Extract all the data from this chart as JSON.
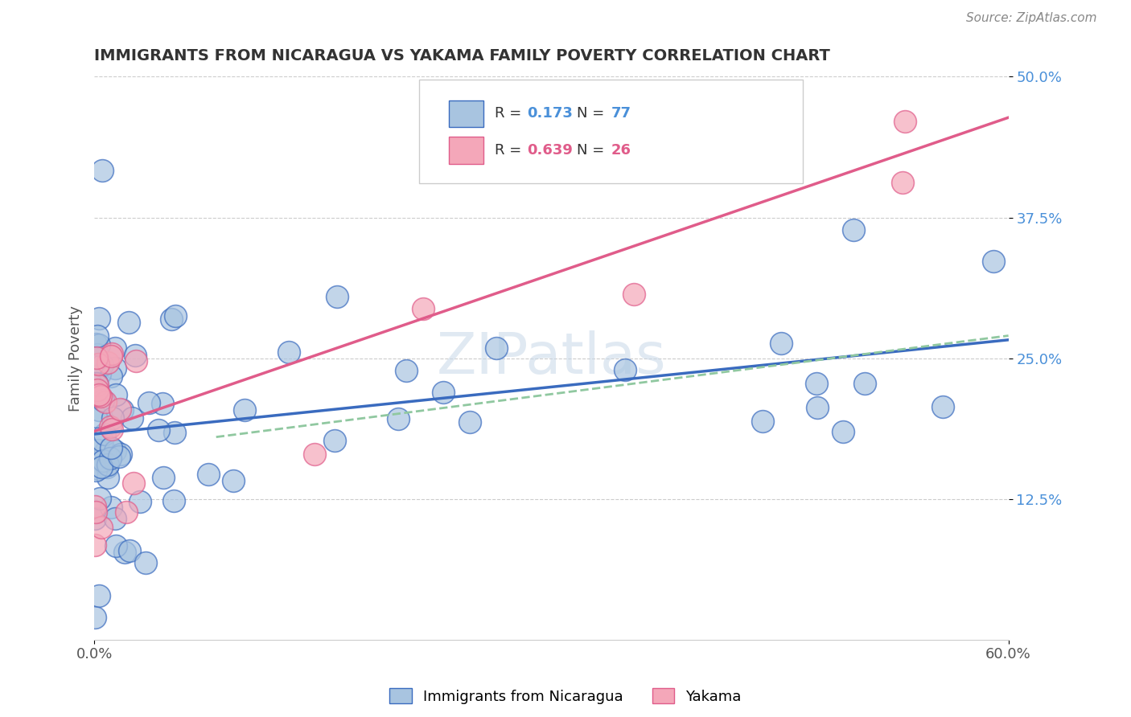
{
  "title": "IMMIGRANTS FROM NICARAGUA VS YAKAMA FAMILY POVERTY CORRELATION CHART",
  "source": "Source: ZipAtlas.com",
  "xlabel_label": "Immigrants from Nicaragua",
  "ylabel_label": "Family Poverty",
  "legend_label1": "Immigrants from Nicaragua",
  "legend_label2": "Yakama",
  "r1": "0.173",
  "n1": "77",
  "r2": "0.639",
  "n2": "26",
  "xlim": [
    0.0,
    0.6
  ],
  "ylim": [
    0.0,
    0.5
  ],
  "ytick_positions": [
    0.125,
    0.25,
    0.375,
    0.5
  ],
  "ytick_labels": [
    "12.5%",
    "25.0%",
    "37.5%",
    "50.0%"
  ],
  "color_blue": "#a8c4e0",
  "color_pink": "#f4a7b9",
  "line_blue": "#3a6bbf",
  "line_pink": "#e05c8a",
  "line_dash": "#90c8a0",
  "watermark": "ZIPatlas"
}
